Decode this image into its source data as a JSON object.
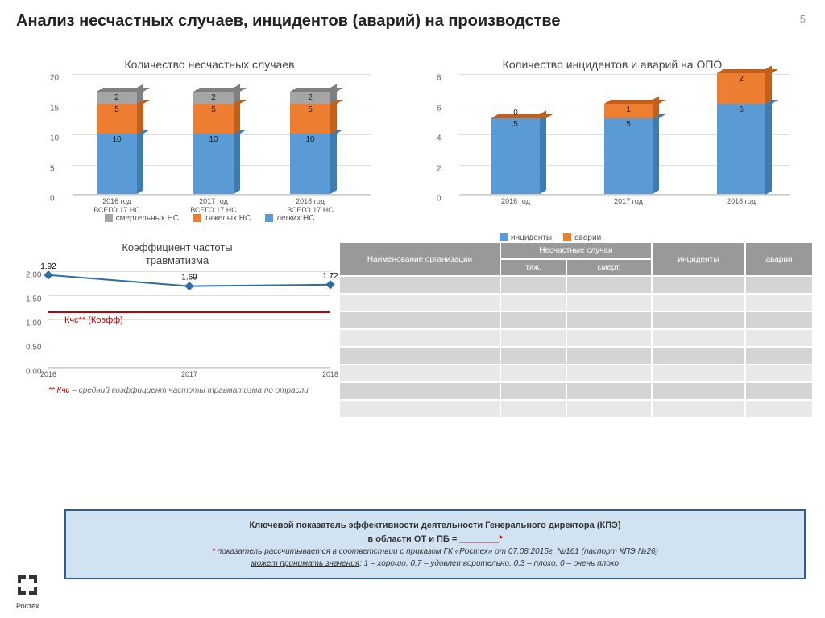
{
  "page_number": "5",
  "title": "Анализ несчастных случаев, инцидентов (аварий) на производстве",
  "chart1": {
    "type": "stacked-bar-3d",
    "title": "Количество несчастных случаев",
    "ymax": 20,
    "ytick_step": 5,
    "categories": [
      "2016 год\nВСЕГО 17 НС",
      "2017 год\nВСЕГО 17 НС",
      "2018 год\nВСЕГО 17 НС"
    ],
    "series": [
      {
        "name": "легких НС",
        "color": "#5b9bd5",
        "shade": "#3e7bb0",
        "values": [
          10,
          10,
          10
        ]
      },
      {
        "name": "тяжелых НС",
        "color": "#ed7d31",
        "shade": "#c25f1a",
        "values": [
          5,
          5,
          5
        ]
      },
      {
        "name": "смертельных НС",
        "color": "#a5a5a5",
        "shade": "#7f7f7f",
        "values": [
          2,
          2,
          2
        ]
      }
    ],
    "legend_order": [
      "смертельных НС",
      "тяжелых НС",
      "легких НС"
    ]
  },
  "chart2": {
    "type": "stacked-bar-3d",
    "title": "Количество инцидентов и аварий на ОПО",
    "ymax": 8,
    "ytick_step": 2,
    "categories": [
      "2016 год",
      "2017 год",
      "2018 год"
    ],
    "series": [
      {
        "name": "инциденты",
        "color": "#5b9bd5",
        "shade": "#3e7bb0",
        "values": [
          5,
          5,
          6
        ]
      },
      {
        "name": "аварии",
        "color": "#ed7d31",
        "shade": "#c25f1a",
        "values": [
          0,
          1,
          2
        ]
      }
    ],
    "legend_order": [
      "инциденты",
      "аварии"
    ]
  },
  "line_chart": {
    "type": "line",
    "title": "Коэффициент частоты\nтравматизма",
    "ymax": 2.0,
    "ytick_step": 0.5,
    "x": [
      "2016",
      "2017",
      "2018"
    ],
    "y": [
      1.92,
      1.69,
      1.72
    ],
    "line_color": "#2e6ca4",
    "marker": "diamond",
    "marker_color": "#2e6ca4",
    "threshold": {
      "value": 1.15,
      "color": "#c00000",
      "label": "Кчс** (Коэфф)"
    },
    "footnote_prefix": "** Кчс",
    "footnote_rest": " – средний коэффициент частоты травматизма по отрасли"
  },
  "table": {
    "header_row1": [
      "Наименование организации",
      "Несчастные случаи",
      "инциденты",
      "аварии"
    ],
    "header_row2": [
      "тяж.",
      "смерт."
    ],
    "rows": 8
  },
  "kpi": {
    "line1": "Ключевой показатель эффективности деятельности Генерального директора (КПЭ)",
    "line2_a": "в области ОТ и ПБ = ",
    "line2_blank": "________",
    "line2_star": "*",
    "note_star": "*",
    "note": " показатель рассчитывается в соответствии с приказом ГК «Ростех» от 07.08.2015г. №161 (паспорт КПЭ №26)",
    "note2_u": "может принимать значения",
    "note2_rest": ": 1 – хорошо, 0,7 – удовлетворительно, 0,3 – плохо, 0 – очень плохо"
  },
  "logo_text": "Ростех"
}
